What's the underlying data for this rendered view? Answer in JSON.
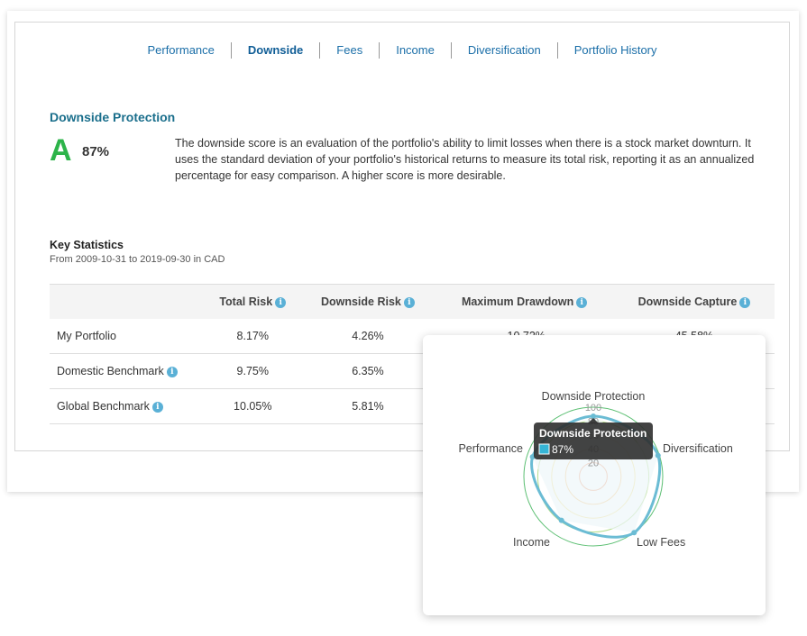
{
  "tabs": [
    "Performance",
    "Downside",
    "Fees",
    "Income",
    "Diversification",
    "Portfolio History"
  ],
  "active_tab": "Downside",
  "section": {
    "title": "Downside Protection",
    "grade": "A",
    "percent": "87%",
    "description": "The downside score is an evaluation of the portfolio's ability to limit losses when there is a stock market downturn. It uses the standard deviation of your portfolio's historical returns to measure its total risk, reporting it as an annualized percentage for easy comparison. A higher score is more desirable."
  },
  "key_stats": {
    "title": "Key Statistics",
    "subtitle": "From 2009-10-31 to 2019-09-30 in CAD",
    "columns": [
      "Total Risk",
      "Downside Risk",
      "Maximum Drawdown",
      "Downside Capture"
    ],
    "rows": [
      {
        "label": "My Portfolio",
        "info": false,
        "values": [
          "8.17%",
          "4.26%",
          "-10.72%",
          "45.58%"
        ]
      },
      {
        "label": "Domestic Benchmark",
        "info": true,
        "values": [
          "9.75%",
          "6.35%",
          "",
          ""
        ]
      },
      {
        "label": "Global Benchmark",
        "info": true,
        "values": [
          "10.05%",
          "5.81%",
          "",
          ""
        ]
      }
    ]
  },
  "info_glyph": "i",
  "chart_data": {
    "type": "radar",
    "axes": [
      "Downside Protection",
      "Diversification",
      "Low Fees",
      "Income",
      "Performance"
    ],
    "values": [
      87,
      98,
      100,
      78,
      92
    ],
    "rmax": 100,
    "rings": [
      20,
      40,
      60,
      80,
      100
    ],
    "ring_labels": [
      "20",
      "40",
      "60",
      "80",
      "100"
    ],
    "ring_colors": [
      "#f0a07a",
      "#f7c67f",
      "#f3e08a",
      "#b5dd8c",
      "#5cbf73"
    ],
    "series_color": "#6bbcd4",
    "fill_color": "#eef6f9",
    "tooltip": {
      "title": "Downside Protection",
      "value": "87%",
      "color": "#36b5d6"
    }
  }
}
